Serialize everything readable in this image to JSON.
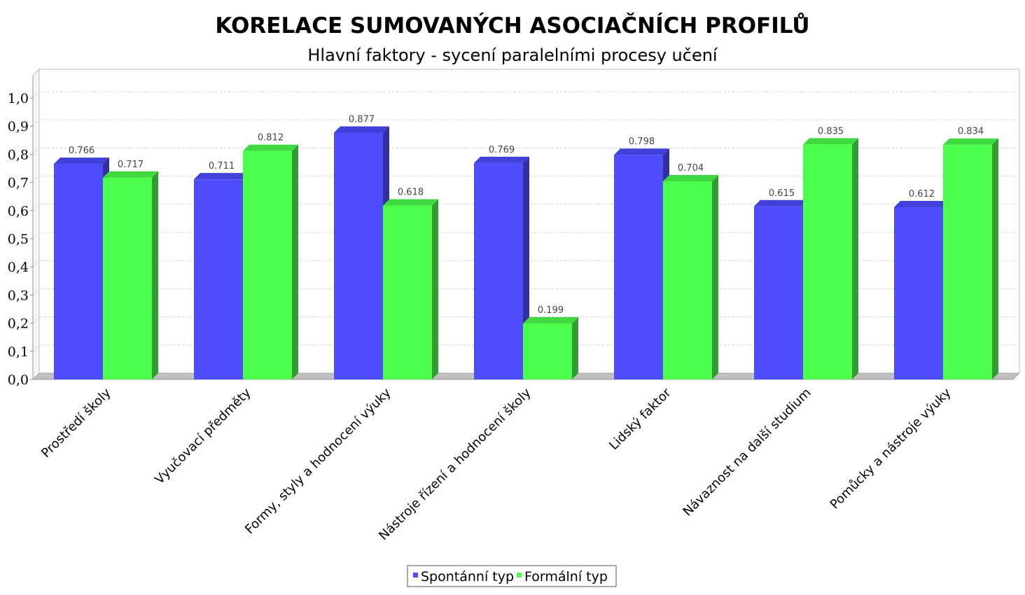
{
  "chart_data": {
    "type": "bar",
    "title": "KORELACE SUMOVANÝCH ASOCIAČNÍCH PROFILŮ",
    "subtitle": "Hlavní faktory - sycení paralelními procesy učení",
    "categories": [
      "Prostředí školy",
      "Vyučovací předměty",
      "Formy, styly a hodnocení výuky",
      "Nástroje řízení a hodnocení školy",
      "Lidský faktor",
      "Návaznost na další studium",
      "Pomůcky a nástroje výuky"
    ],
    "series": [
      {
        "name": "Spontánní typ",
        "color": "#4d4dff",
        "values": [
          0.766,
          0.711,
          0.877,
          0.769,
          0.798,
          0.615,
          0.612
        ],
        "labels": [
          "0.766",
          "0.711",
          "0.877",
          "0.769",
          "0.798",
          "0.615",
          "0.612"
        ]
      },
      {
        "name": "Formální typ",
        "color": "#4dff4d",
        "values": [
          0.717,
          0.812,
          0.618,
          0.199,
          0.704,
          0.835,
          0.834
        ],
        "labels": [
          "0.717",
          "0.812",
          "0.618",
          "0.199",
          "0.704",
          "0.835",
          "0.834"
        ]
      }
    ],
    "yticks": [
      "0,0",
      "0,1",
      "0,2",
      "0,3",
      "0,4",
      "0,5",
      "0,6",
      "0,7",
      "0,8",
      "0,9",
      "1,0"
    ],
    "ylim": [
      0,
      1.0
    ],
    "grid": true,
    "legend": "bottom-center",
    "style": "3d-bars"
  }
}
